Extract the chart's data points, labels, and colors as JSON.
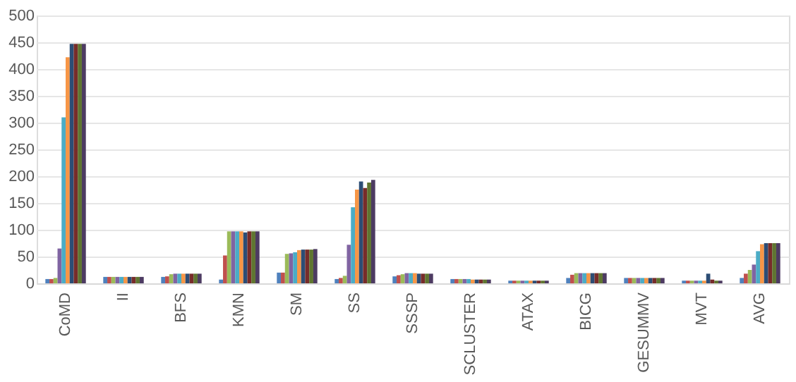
{
  "chart_data": {
    "type": "bar",
    "categories": [
      "CoMD",
      "II",
      "BFS",
      "KMN",
      "SM",
      "SS",
      "SSSP",
      "SCLUSTER",
      "ATAX",
      "BICG",
      "GESUMMV",
      "MVT",
      "AVG"
    ],
    "series": [
      {
        "color": "#4f81bd",
        "values": [
          8,
          12,
          12,
          7,
          20,
          8,
          13,
          8,
          5,
          10,
          10,
          5,
          10
        ]
      },
      {
        "color": "#c0504d",
        "values": [
          8,
          12,
          13,
          52,
          20,
          10,
          15,
          8,
          5,
          16,
          10,
          5,
          18
        ]
      },
      {
        "color": "#9bbb59",
        "values": [
          10,
          12,
          17,
          97,
          55,
          14,
          17,
          8,
          5,
          19,
          10,
          5,
          25
        ]
      },
      {
        "color": "#8064a2",
        "values": [
          65,
          12,
          18,
          97,
          56,
          72,
          19,
          8,
          5,
          19,
          10,
          5,
          35
        ]
      },
      {
        "color": "#4bacc6",
        "values": [
          310,
          12,
          18,
          97,
          58,
          142,
          19,
          8,
          5,
          19,
          10,
          5,
          60
        ]
      },
      {
        "color": "#f79646",
        "values": [
          422,
          12,
          18,
          97,
          62,
          175,
          19,
          7,
          5,
          19,
          10,
          5,
          73
        ]
      },
      {
        "color": "#2c4d75",
        "values": [
          447,
          12,
          18,
          95,
          63,
          190,
          18,
          7,
          5,
          19,
          10,
          18,
          75
        ]
      },
      {
        "color": "#772c2a",
        "values": [
          447,
          12,
          18,
          97,
          63,
          178,
          18,
          7,
          5,
          19,
          10,
          7,
          75
        ]
      },
      {
        "color": "#5f7530",
        "values": [
          447,
          12,
          18,
          97,
          63,
          188,
          18,
          7,
          5,
          19,
          10,
          5,
          75
        ]
      },
      {
        "color": "#4d3b62",
        "values": [
          447,
          12,
          18,
          97,
          64,
          193,
          18,
          7,
          5,
          19,
          10,
          5,
          75
        ]
      }
    ],
    "ylim": [
      0,
      500
    ],
    "yticks": [
      0,
      50,
      100,
      150,
      200,
      250,
      300,
      350,
      400,
      450,
      500
    ],
    "grid": "y",
    "legend": false
  }
}
